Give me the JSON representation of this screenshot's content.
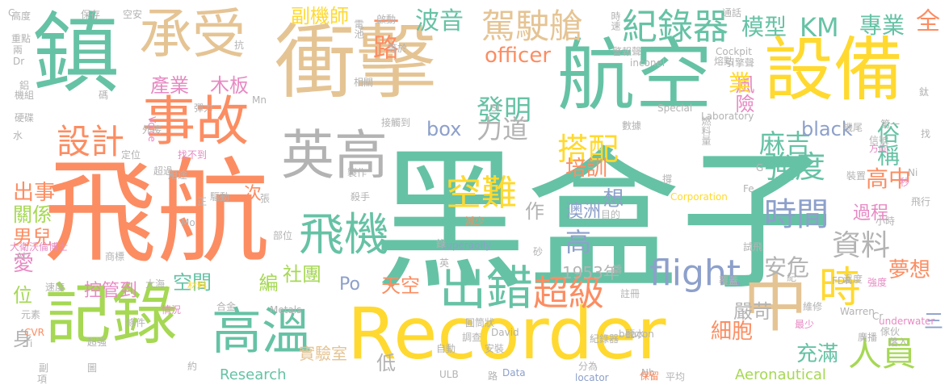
{
  "palette": {
    "green": "#66c2a5",
    "orange": "#fc8d62",
    "blue": "#8da0cb",
    "pink": "#e78ac3",
    "lime": "#a6d854",
    "yellow": "#ffd92f",
    "tan": "#e5c494",
    "gray": "#b3b3b3"
  },
  "words": [
    {
      "text": "黑盒子",
      "color": "green"
    },
    {
      "text": "飛航",
      "color": "orange"
    },
    {
      "text": "鎮",
      "color": "green"
    },
    {
      "text": "衝擊",
      "color": "tan"
    },
    {
      "text": "航空",
      "color": "green"
    },
    {
      "text": "設備",
      "color": "yellow"
    },
    {
      "text": "Recorder",
      "color": "yellow"
    },
    {
      "text": "記錄",
      "color": "lime"
    },
    {
      "text": "承受",
      "color": "tan"
    },
    {
      "text": "事故",
      "color": "orange"
    },
    {
      "text": "中",
      "color": "tan"
    },
    {
      "text": "英高",
      "color": "gray"
    },
    {
      "text": "高溫",
      "color": "green"
    },
    {
      "text": "出錯",
      "color": "green"
    },
    {
      "text": "飛機",
      "color": "green"
    },
    {
      "text": "設計",
      "color": "orange"
    },
    {
      "text": "紀錄器",
      "color": "green"
    },
    {
      "text": "駕駛艙",
      "color": "tan"
    },
    {
      "text": "時",
      "color": "yellow"
    },
    {
      "text": "人員",
      "color": "lime"
    },
    {
      "text": "KM",
      "color": "green"
    },
    {
      "text": "flight",
      "color": "blue"
    },
    {
      "text": "資料",
      "color": "gray"
    },
    {
      "text": "時間",
      "color": "blue"
    },
    {
      "text": "強度",
      "color": "green"
    },
    {
      "text": "空難",
      "color": "yellow"
    },
    {
      "text": "超級",
      "color": "orange"
    },
    {
      "text": "搭配",
      "color": "yellow"
    },
    {
      "text": "發明",
      "color": "green"
    },
    {
      "text": "力道",
      "color": "gray"
    },
    {
      "text": "麻吉",
      "color": "green"
    },
    {
      "text": "波音",
      "color": "green"
    },
    {
      "text": "一路",
      "color": "orange"
    },
    {
      "text": "副機師",
      "color": "yellow"
    },
    {
      "text": "產業",
      "color": "pink"
    },
    {
      "text": "木板",
      "color": "pink"
    },
    {
      "text": "模型",
      "color": "green"
    },
    {
      "text": "專業",
      "color": "green"
    },
    {
      "text": "全",
      "color": "orange"
    },
    {
      "text": "officer",
      "color": "orange"
    },
    {
      "text": "box",
      "color": "blue"
    },
    {
      "text": "black",
      "color": "blue"
    },
    {
      "text": "俗稱",
      "color": "green"
    },
    {
      "text": "風險",
      "color": "pink"
    },
    {
      "text": "業",
      "color": "yellow"
    },
    {
      "text": "高中",
      "color": "orange"
    },
    {
      "text": "培訓",
      "color": "orange"
    },
    {
      "text": "想",
      "color": "blue"
    },
    {
      "text": "作",
      "color": "gray"
    },
    {
      "text": "次",
      "color": "orange"
    },
    {
      "text": "出事",
      "color": "orange"
    },
    {
      "text": "關係",
      "color": "lime"
    },
    {
      "text": "男兒",
      "color": "orange"
    },
    {
      "text": "愛",
      "color": "pink"
    },
    {
      "text": "位",
      "color": "lime"
    },
    {
      "text": "身",
      "color": "gray"
    },
    {
      "text": "高",
      "color": "blue"
    },
    {
      "text": "澳洲",
      "color": "blue"
    },
    {
      "text": "安危",
      "color": "gray"
    },
    {
      "text": "空間",
      "color": "green"
    },
    {
      "text": "編",
      "color": "lime"
    },
    {
      "text": "社團",
      "color": "lime"
    },
    {
      "text": "Po",
      "color": "blue"
    },
    {
      "text": "天空",
      "color": "orange"
    },
    {
      "text": "控管到",
      "color": "pink"
    },
    {
      "text": "1953年",
      "color": "gray"
    },
    {
      "text": "過程",
      "color": "pink"
    },
    {
      "text": "夢想",
      "color": "orange"
    },
    {
      "text": "三",
      "color": "blue"
    },
    {
      "text": "嚴苛",
      "color": "gray"
    },
    {
      "text": "細胞",
      "color": "orange"
    },
    {
      "text": "充滿",
      "color": "green"
    },
    {
      "text": "低",
      "color": "gray"
    },
    {
      "text": "實驗室",
      "color": "tan"
    },
    {
      "text": "Research",
      "color": "green"
    },
    {
      "text": "Aeronautical",
      "color": "lime"
    },
    {
      "text": "目的",
      "color": "gray"
    },
    {
      "text": "Laboratory",
      "color": "gray"
    },
    {
      "text": "燃料量",
      "color": "gray"
    },
    {
      "text": "數據",
      "color": "gray"
    },
    {
      "text": "Special",
      "color": "gray"
    },
    {
      "text": "inconel",
      "color": "gray"
    },
    {
      "text": "Cockpit",
      "color": "gray"
    },
    {
      "text": "引擎聲",
      "color": "gray"
    },
    {
      "text": "機尾",
      "color": "gray"
    },
    {
      "text": "信號",
      "color": "gray"
    },
    {
      "text": "方向",
      "color": "pink"
    },
    {
      "text": "Corporation",
      "color": "yellow"
    },
    {
      "text": "superaolly",
      "color": "blue"
    },
    {
      "text": "Metals",
      "color": "gray"
    },
    {
      "text": "Voice",
      "color": "pink"
    },
    {
      "text": "大衛沃倫博士",
      "color": "pink"
    },
    {
      "text": "CVR",
      "color": "orange"
    },
    {
      "text": "Warren",
      "color": "gray"
    },
    {
      "text": "FDR",
      "color": "gray"
    },
    {
      "text": "beacon",
      "color": "gray"
    },
    {
      "text": "underwater",
      "color": "pink"
    },
    {
      "text": "locator",
      "color": "blue"
    },
    {
      "text": "ULB",
      "color": "gray"
    },
    {
      "text": "Data",
      "color": "blue"
    },
    {
      "text": "David",
      "color": "gray"
    },
    {
      "text": "Nb",
      "color": "gray"
    },
    {
      "text": "保留",
      "color": "orange"
    },
    {
      "text": "平均",
      "color": "gray"
    },
    {
      "text": "分為",
      "color": "gray"
    },
    {
      "text": "強度",
      "color": "pink"
    },
    {
      "text": "安裝",
      "color": "gray"
    },
    {
      "text": "紀錄器",
      "color": "gray"
    },
    {
      "text": "鹽水",
      "color": "gray"
    },
    {
      "text": "溫度",
      "color": "gray"
    },
    {
      "text": "落入",
      "color": "gray"
    },
    {
      "text": "傢伙",
      "color": "gray"
    },
    {
      "text": "維修",
      "color": "gray"
    },
    {
      "text": "最少",
      "color": "pink"
    },
    {
      "text": "廣播",
      "color": "gray"
    },
    {
      "text": "高度",
      "color": "gray"
    },
    {
      "text": "重點",
      "color": "gray"
    },
    {
      "text": "機組",
      "color": "gray"
    },
    {
      "text": "硬碟",
      "color": "gray"
    },
    {
      "text": "速度",
      "color": "gray"
    },
    {
      "text": "元素",
      "color": "gray"
    },
    {
      "text": "超強",
      "color": "gray"
    },
    {
      "text": "材料",
      "color": "yellow"
    },
    {
      "text": "合金",
      "color": "gray"
    },
    {
      "text": "大海",
      "color": "gray"
    },
    {
      "text": "情況",
      "color": "pink"
    },
    {
      "text": "驅動",
      "color": "gray"
    },
    {
      "text": "用途",
      "color": "gray"
    },
    {
      "text": "找不到",
      "color": "pink"
    },
    {
      "text": "外接",
      "color": "gray"
    },
    {
      "text": "定位",
      "color": "gray"
    },
    {
      "text": "超過",
      "color": "gray"
    },
    {
      "text": "等於",
      "color": "gray"
    },
    {
      "text": "電池",
      "color": "gray"
    },
    {
      "text": "啟動",
      "color": "gray"
    },
    {
      "text": "製作",
      "color": "gray"
    },
    {
      "text": "接觸到",
      "color": "gray"
    },
    {
      "text": "相關",
      "color": "gray"
    },
    {
      "text": "部位",
      "color": "gray"
    },
    {
      "text": "殺手",
      "color": "gray"
    },
    {
      "text": "減少",
      "color": "orange"
    },
    {
      "text": "圓筒狀",
      "color": "gray"
    },
    {
      "text": "自動",
      "color": "gray"
    },
    {
      "text": "調查",
      "color": "gray"
    },
    {
      "text": "註冊",
      "color": "gray"
    },
    {
      "text": "覆蓋",
      "color": "gray"
    },
    {
      "text": "試飛",
      "color": "gray"
    },
    {
      "text": "飛行",
      "color": "gray"
    },
    {
      "text": "小時",
      "color": "gray"
    },
    {
      "text": "第一",
      "color": "gray"
    },
    {
      "text": "通話",
      "color": "gray"
    },
    {
      "text": "時速",
      "color": "gray"
    },
    {
      "text": "警報聲",
      "color": "gray"
    },
    {
      "text": "熔點",
      "color": "gray"
    },
    {
      "text": "裝置",
      "color": "gray"
    },
    {
      "text": "保存",
      "color": "gray"
    },
    {
      "text": "空安",
      "color": "gray"
    },
    {
      "text": "抗",
      "color": "gray"
    },
    {
      "text": "張",
      "color": "gray"
    },
    {
      "text": "秒",
      "color": "pink"
    },
    {
      "text": "找",
      "color": "gray"
    },
    {
      "text": "鈦",
      "color": "gray"
    },
    {
      "text": "撐",
      "color": "gray"
    },
    {
      "text": "紀",
      "color": "gray"
    },
    {
      "text": "錄",
      "color": "gray"
    },
    {
      "text": "英",
      "color": "gray"
    },
    {
      "text": "鑄",
      "color": "gray"
    },
    {
      "text": "砂",
      "color": "gray"
    },
    {
      "text": "路",
      "color": "gray"
    },
    {
      "text": "約",
      "color": "gray"
    },
    {
      "text": "副",
      "color": "gray"
    },
    {
      "text": "項",
      "color": "gray"
    },
    {
      "text": "正",
      "color": "gray"
    },
    {
      "text": "碼",
      "color": "gray"
    },
    {
      "text": "鋁",
      "color": "gray"
    },
    {
      "text": "水",
      "color": "gray"
    },
    {
      "text": "圖",
      "color": "gray"
    },
    {
      "text": "條件",
      "color": "gray"
    },
    {
      "text": "商標",
      "color": "gray"
    },
    {
      "text": "彈力",
      "color": "gray"
    },
    {
      "text": "兩",
      "color": "gray"
    },
    {
      "text": "Dr",
      "color": "gray"
    },
    {
      "text": "Mn",
      "color": "gray"
    },
    {
      "text": "Mo",
      "color": "gray"
    },
    {
      "text": "Fe",
      "color": "gray"
    },
    {
      "text": "Ni",
      "color": "gray"
    },
    {
      "text": "Cr",
      "color": "gray"
    },
    {
      "text": "Ti",
      "color": "gray"
    },
    {
      "text": "Al",
      "color": "gray"
    },
    {
      "text": "Si",
      "color": "gray"
    },
    {
      "text": "G",
      "color": "gray"
    },
    {
      "text": "C",
      "color": "gray"
    }
  ]
}
